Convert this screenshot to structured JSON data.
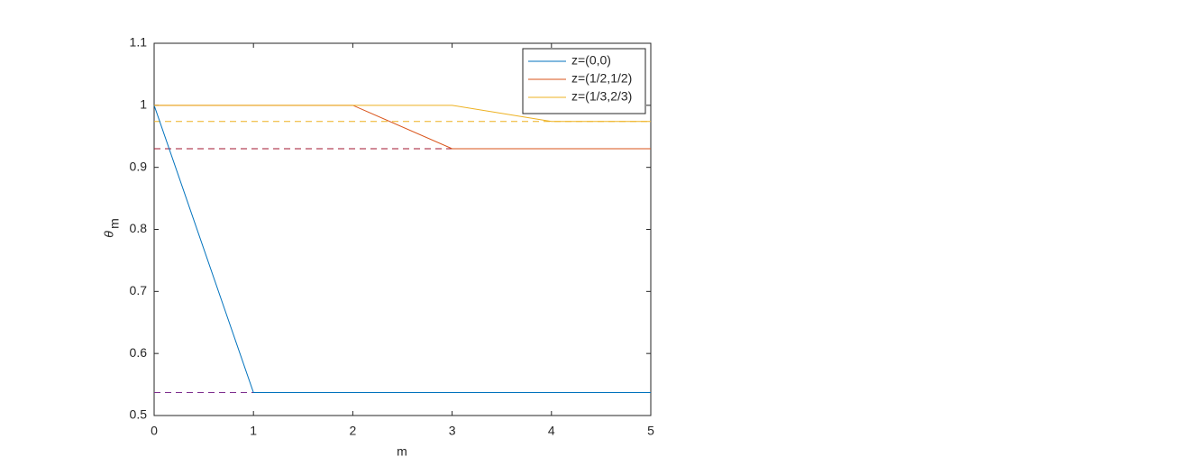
{
  "chart_data": {
    "type": "line",
    "xlabel": "m",
    "ylabel": "θ",
    "ylabel_sub": "m",
    "x": [
      0,
      1,
      2,
      3,
      4,
      5
    ],
    "series": [
      {
        "name": "z=(0,0)",
        "color": "#0072bd",
        "values": [
          1,
          0.537,
          0.537,
          0.537,
          0.537,
          0.537
        ]
      },
      {
        "name": "z=(1/2,1/2)",
        "color": "#d95319",
        "values": [
          1,
          1,
          1,
          0.93,
          0.93,
          0.93
        ]
      },
      {
        "name": "z=(1/3,2/3)",
        "color": "#edb120",
        "values": [
          1,
          1,
          1,
          1,
          0.974,
          0.974
        ]
      },
      {
        "color": "#7e2f8e",
        "dashed": true,
        "values": [
          0.537,
          0.537,
          0.537,
          0.537,
          0.537,
          0.537
        ]
      },
      {
        "color": "#a2142f",
        "dashed": true,
        "values": [
          0.93,
          0.93,
          0.93,
          0.93,
          0.93,
          0.93
        ]
      },
      {
        "color": "#edb120",
        "dashed": true,
        "values": [
          0.974,
          0.974,
          0.974,
          0.974,
          0.974,
          0.974
        ]
      }
    ],
    "xlim": [
      0,
      5
    ],
    "xticks": [
      0,
      1,
      2,
      3,
      4,
      5
    ],
    "ylim": [
      0.5,
      1.1
    ],
    "yticks": [
      0.5,
      0.6,
      0.7,
      0.8,
      0.9,
      1,
      1.1
    ],
    "legend": "northeast",
    "grid": false
  }
}
